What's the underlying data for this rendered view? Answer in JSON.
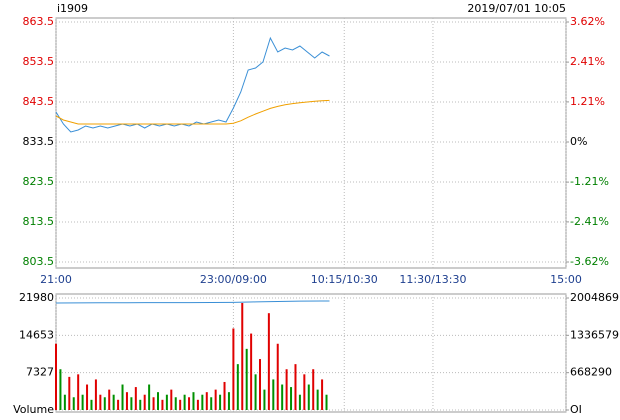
{
  "chart_data": [
    {
      "type": "line",
      "title": "i1909",
      "timestamp": "2019/07/01 10:05",
      "x": [
        0,
        5,
        10,
        15,
        20,
        25,
        30,
        35,
        40,
        45,
        50,
        55,
        60,
        65,
        70,
        75,
        80,
        85,
        90,
        95,
        100,
        105,
        110,
        115,
        120,
        125,
        130,
        135,
        140,
        145,
        150,
        155,
        160,
        165,
        170,
        175,
        180,
        185
      ],
      "xlim": [
        0,
        345
      ],
      "xticks": [
        {
          "value": 0,
          "label": "21:00"
        },
        {
          "value": 120,
          "label": "23:00/09:00"
        },
        {
          "value": 195,
          "label": "10:15/10:30"
        },
        {
          "value": 255,
          "label": "11:30/13:30"
        },
        {
          "value": 345,
          "label": "15:00"
        }
      ],
      "ylim": [
        803.5,
        863.5
      ],
      "yticks": [
        863.5,
        853.5,
        843.5,
        833.5,
        823.5,
        813.5,
        803.5
      ],
      "y2lim": [
        -3.62,
        3.62
      ],
      "y2ticks": [
        {
          "value": 3.62,
          "label": "3.62%"
        },
        {
          "value": 2.41,
          "label": "2.41%"
        },
        {
          "value": 1.21,
          "label": "1.21%"
        },
        {
          "value": 0,
          "label": "0%"
        },
        {
          "value": -1.21,
          "label": "-1.21%"
        },
        {
          "value": -2.41,
          "label": "-2.41%"
        },
        {
          "value": -3.62,
          "label": "-3.62%"
        }
      ],
      "grid": true,
      "series": [
        {
          "color": "#3a8fd6",
          "values": [
            841.0,
            838.0,
            836.0,
            836.5,
            837.5,
            837.0,
            837.5,
            837.0,
            837.5,
            838.0,
            837.5,
            838.0,
            837.0,
            838.0,
            837.5,
            838.0,
            837.5,
            838.0,
            837.5,
            838.5,
            838.0,
            838.5,
            839.0,
            838.5,
            842.0,
            846.0,
            851.5,
            852.0,
            853.5,
            859.5,
            856.0,
            857.0,
            856.5,
            857.5,
            856.0,
            854.5,
            856.0,
            855.0
          ]
        },
        {
          "color": "#f0a000",
          "values": [
            840.0,
            839.0,
            838.5,
            838.0,
            838.0,
            838.0,
            838.0,
            838.0,
            838.0,
            838.0,
            838.0,
            838.0,
            838.0,
            838.0,
            838.0,
            838.0,
            838.0,
            838.0,
            838.0,
            838.0,
            838.0,
            838.0,
            838.0,
            838.0,
            838.2,
            838.8,
            839.7,
            840.5,
            841.2,
            841.9,
            842.4,
            842.8,
            843.1,
            843.3,
            843.5,
            843.7,
            843.8,
            843.9
          ]
        }
      ]
    },
    {
      "type": "bar",
      "x": [
        0,
        3,
        6,
        9,
        12,
        15,
        18,
        21,
        24,
        27,
        30,
        33,
        36,
        39,
        42,
        45,
        48,
        51,
        54,
        57,
        60,
        63,
        66,
        69,
        72,
        75,
        78,
        81,
        84,
        87,
        90,
        93,
        96,
        99,
        102,
        105,
        108,
        111,
        114,
        117,
        120,
        123,
        126,
        129,
        132,
        135,
        138,
        141,
        144,
        147,
        150,
        153,
        156,
        159,
        162,
        165,
        168,
        171,
        174,
        177,
        180,
        183
      ],
      "values": [
        13000,
        8000,
        3000,
        6500,
        2500,
        7000,
        3000,
        5000,
        2000,
        6000,
        3000,
        2500,
        4000,
        3000,
        2000,
        5000,
        3500,
        2500,
        4500,
        2000,
        3000,
        5000,
        2500,
        3500,
        2000,
        3000,
        4000,
        2500,
        2000,
        3000,
        2500,
        3500,
        2000,
        3000,
        3500,
        2500,
        4000,
        3000,
        5500,
        3500,
        16000,
        9000,
        21000,
        12000,
        15000,
        7000,
        10000,
        4000,
        19000,
        6000,
        13000,
        5000,
        8000,
        4500,
        9000,
        3000,
        7000,
        5000,
        8000,
        4000,
        6000,
        3000
      ],
      "colors": [
        "#e00000",
        "#009000",
        "#009000",
        "#e00000",
        "#009000",
        "#e00000",
        "#009000",
        "#e00000",
        "#009000",
        "#e00000",
        "#e00000",
        "#009000",
        "#e00000",
        "#009000",
        "#e00000",
        "#009000",
        "#e00000",
        "#009000",
        "#e00000",
        "#009000",
        "#e00000",
        "#009000",
        "#e00000",
        "#009000",
        "#e00000",
        "#009000",
        "#e00000",
        "#009000",
        "#e00000",
        "#009000",
        "#e00000",
        "#009000",
        "#e00000",
        "#009000",
        "#e00000",
        "#009000",
        "#e00000",
        "#009000",
        "#e00000",
        "#009000",
        "#e00000",
        "#009000",
        "#e00000",
        "#009000",
        "#e00000",
        "#009000",
        "#e00000",
        "#009000",
        "#e00000",
        "#009000",
        "#e00000",
        "#009000",
        "#e00000",
        "#009000",
        "#e00000",
        "#009000",
        "#e00000",
        "#009000",
        "#e00000",
        "#009000",
        "#e00000",
        "#009000"
      ],
      "xlim": [
        0,
        345
      ],
      "ylim": [
        0,
        21980
      ],
      "yticks": [
        {
          "value": 0,
          "label": "Volume"
        },
        7327,
        14653,
        21980
      ],
      "y2lim": [
        0,
        2004869
      ],
      "y2ticks": [
        {
          "value": 0,
          "label": "OI"
        },
        668290,
        1336579,
        2004869
      ],
      "grid": true,
      "series": [
        {
          "axis": "y2",
          "color": "#3a8fd6",
          "x": [
            0,
            15,
            30,
            45,
            60,
            75,
            90,
            105,
            120,
            135,
            150,
            165,
            180,
            185
          ],
          "values": [
            1916000,
            1918000,
            1919000,
            1920000,
            1921000,
            1922000,
            1923000,
            1924000,
            1926000,
            1935000,
            1943000,
            1948000,
            1951000,
            1952000
          ]
        }
      ]
    }
  ]
}
